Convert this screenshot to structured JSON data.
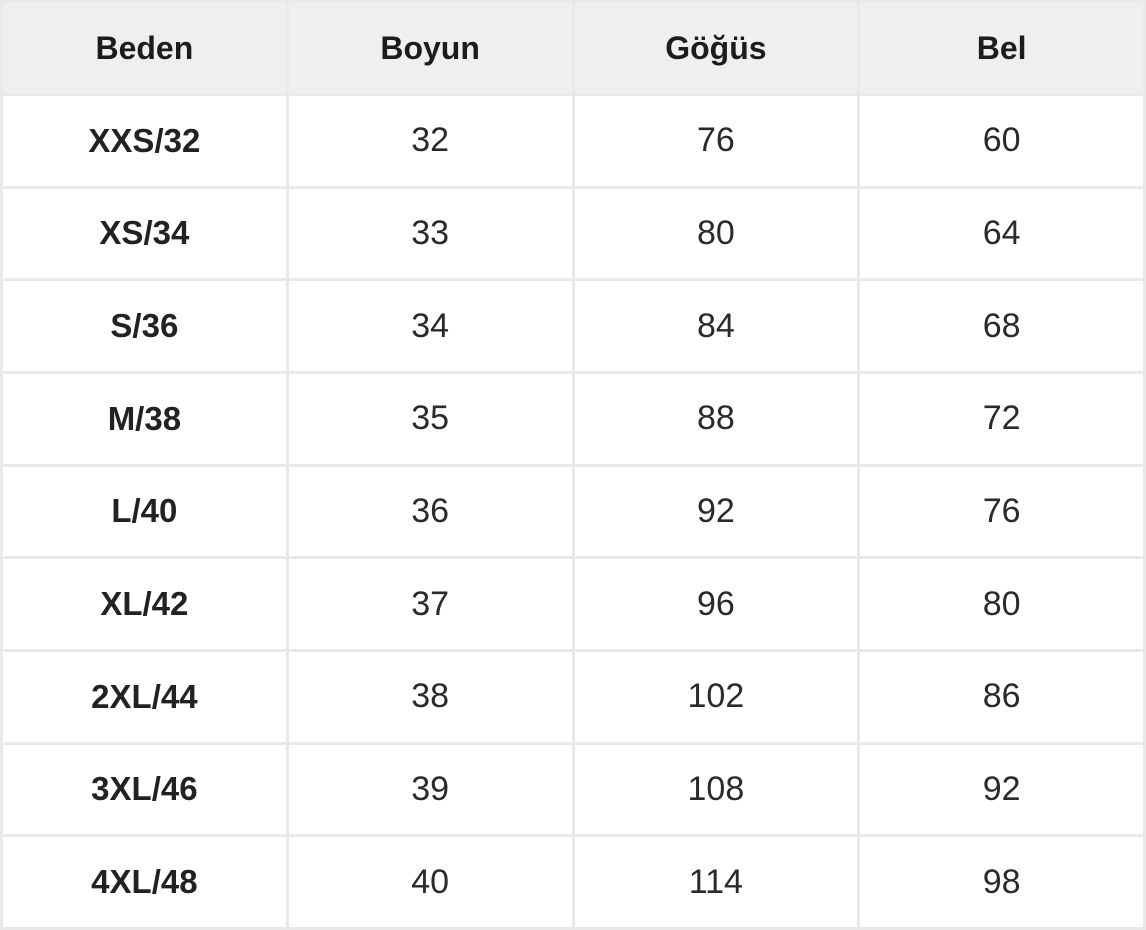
{
  "table": {
    "headers": [
      "Beden",
      "Boyun",
      "Göğüs",
      "Bel"
    ],
    "rows": [
      [
        "XXS/32",
        "32",
        "76",
        "60"
      ],
      [
        "XS/34",
        "33",
        "80",
        "64"
      ],
      [
        "S/36",
        "34",
        "84",
        "68"
      ],
      [
        "M/38",
        "35",
        "88",
        "72"
      ],
      [
        "L/40",
        "36",
        "92",
        "76"
      ],
      [
        "XL/42",
        "37",
        "96",
        "80"
      ],
      [
        "2XL/44",
        "38",
        "102",
        "86"
      ],
      [
        "3XL/46",
        "39",
        "108",
        "92"
      ],
      [
        "4XL/48",
        "40",
        "114",
        "98"
      ]
    ]
  },
  "colors": {
    "header_background": "#efefef",
    "border": "#e9e9e9",
    "text": "#1f1f1f"
  }
}
